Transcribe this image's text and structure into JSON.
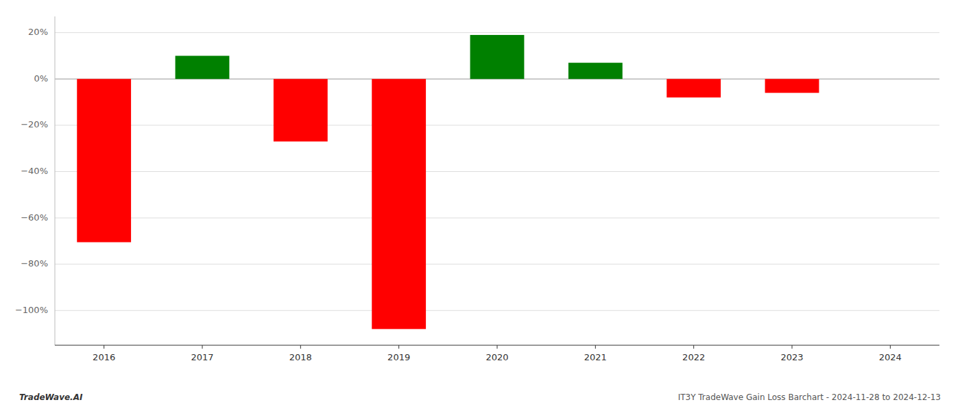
{
  "chart_data": {
    "type": "bar",
    "title": "IT3Y TradeWave Gain Loss Barchart - 2024-11-28 to 2024-12-13",
    "annotations": [
      "TradeWave.AI"
    ],
    "categories": [
      "2016",
      "2017",
      "2018",
      "2019",
      "2020",
      "2021",
      "2022",
      "2023",
      "2024"
    ],
    "values": [
      -70.5,
      10.0,
      -27.0,
      -108.0,
      19.0,
      7.0,
      -8.0,
      -6.0,
      null
    ],
    "colors": [
      "#ff0000",
      "#008000",
      "#ff0000",
      "#ff0000",
      "#008000",
      "#008000",
      "#ff0000",
      "#ff0000",
      null
    ],
    "ylim": [
      -115,
      27
    ],
    "yticks": [
      {
        "value": -100,
        "label": "−100%"
      },
      {
        "value": -80,
        "label": "−80%"
      },
      {
        "value": -60,
        "label": "−60%"
      },
      {
        "value": -40,
        "label": "−40%"
      },
      {
        "value": -20,
        "label": "−20%"
      },
      {
        "value": 0,
        "label": "0%"
      },
      {
        "value": 20,
        "label": "20%"
      }
    ],
    "grid": true
  }
}
